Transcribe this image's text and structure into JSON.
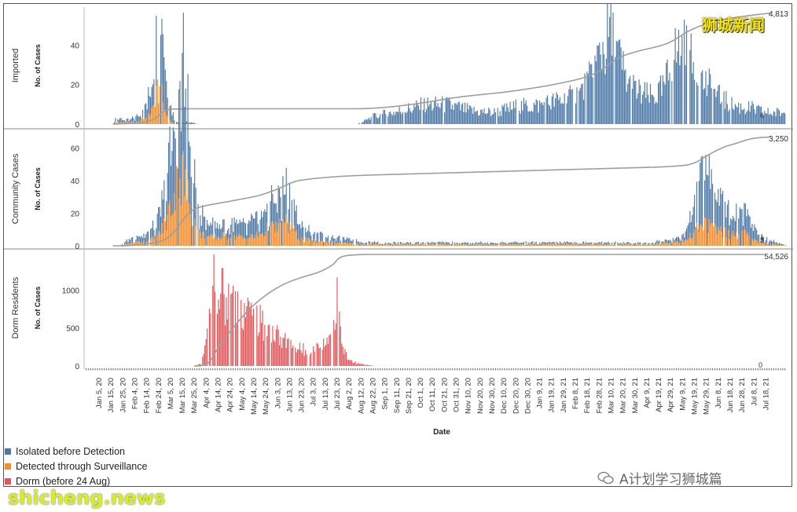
{
  "chart_data": {
    "type": "bar",
    "x_axis": {
      "label": "Date",
      "tick_labels": [
        "Jan 5, 20",
        "Jan 15, 20",
        "Jan 25, 20",
        "Feb 4, 20",
        "Feb 14, 20",
        "Feb 24, 20",
        "Mar 5, 20",
        "Mar 15, 20",
        "Mar 25, 20",
        "Apr 4, 20",
        "Apr 14, 20",
        "Apr 24, 20",
        "May 4, 20",
        "May 14, 20",
        "May 24, 20",
        "Jun 3, 20",
        "Jun 13, 20",
        "Jun 23, 20",
        "Jul 3, 20",
        "Jul 13, 20",
        "Jul 23, 20",
        "Aug 2, 20",
        "Aug 12, 20",
        "Aug 22, 20",
        "Sep 1, 20",
        "Sep 11, 20",
        "Sep 21, 20",
        "Oct 1, 20",
        "Oct 11, 20",
        "Oct 21, 20",
        "Oct 31, 20",
        "Nov 10, 20",
        "Nov 20, 20",
        "Nov 30, 20",
        "Dec 10, 20",
        "Dec 20, 20",
        "Dec 30, 20",
        "Jan 9, 21",
        "Jan 19, 21",
        "Jan 29, 21",
        "Feb 8, 21",
        "Feb 18, 21",
        "Feb 28, 21",
        "Mar 10, 21",
        "Mar 20, 21",
        "Mar 30, 21",
        "Apr 9, 21",
        "Apr 19, 21",
        "Apr 29, 21",
        "May 9, 21",
        "May 19, 21",
        "May 29, 21",
        "Jun 8, 21",
        "Jun 18, 21",
        "Jun 28, 21",
        "Jul 8, 21",
        "Jul 18, 21"
      ]
    },
    "panels": [
      {
        "name": "Imported",
        "ylabel": "No. of Cases",
        "ylim": [
          0,
          56
        ],
        "yticks": [
          0,
          20,
          40
        ],
        "cumulative_end_label": "4,813",
        "last_value_labels": [
          "6"
        ],
        "series": [
          {
            "name": "Isolated before Detection",
            "anchors": [
              [
                3,
                0
              ],
              [
                24,
                0
              ],
              [
                26,
                2
              ],
              [
                38,
                1
              ],
              [
                45,
                3
              ],
              [
                52,
                6
              ],
              [
                58,
                14
              ],
              [
                62,
                28
              ],
              [
                65,
                38
              ],
              [
                67,
                48
              ],
              [
                69,
                34
              ],
              [
                71,
                18
              ],
              [
                75,
                8
              ],
              [
                78,
                3
              ],
              [
                80,
                1
              ],
              [
                90,
                1
              ],
              [
                100,
                0
              ],
              [
                180,
                0
              ],
              [
                240,
                0
              ],
              [
                255,
                4
              ],
              [
                270,
                6
              ],
              [
                285,
                8
              ],
              [
                300,
                10
              ],
              [
                320,
                10
              ],
              [
                340,
                7
              ],
              [
                360,
                6
              ],
              [
                380,
                9
              ],
              [
                400,
                10
              ],
              [
                415,
                12
              ],
              [
                430,
                14
              ],
              [
                440,
                18
              ],
              [
                445,
                22
              ],
              [
                450,
                30
              ],
              [
                455,
                38
              ],
              [
                460,
                44
              ],
              [
                463,
                50
              ],
              [
                466,
                42
              ],
              [
                470,
                36
              ],
              [
                475,
                28
              ],
              [
                480,
                20
              ],
              [
                490,
                16
              ],
              [
                500,
                14
              ],
              [
                510,
                18
              ],
              [
                515,
                26
              ],
              [
                520,
                36
              ],
              [
                525,
                40
              ],
              [
                530,
                38
              ],
              [
                535,
                32
              ],
              [
                540,
                26
              ],
              [
                550,
                20
              ],
              [
                560,
                14
              ],
              [
                570,
                10
              ],
              [
                580,
                9
              ],
              [
                590,
                8
              ],
              [
                600,
                6
              ],
              [
                620,
                6
              ]
            ]
          },
          {
            "name": "Detected through Surveillance",
            "anchors": [
              [
                3,
                0
              ],
              [
                24,
                0
              ],
              [
                26,
                1
              ],
              [
                45,
                1
              ],
              [
                55,
                4
              ],
              [
                60,
                10
              ],
              [
                64,
                18
              ],
              [
                67,
                14
              ],
              [
                70,
                6
              ],
              [
                74,
                2
              ],
              [
                78,
                0
              ],
              [
                620,
                0
              ]
            ]
          }
        ]
      },
      {
        "name": "Community Cases",
        "ylabel": "No. of Cases",
        "ylim": [
          0,
          66
        ],
        "yticks": [
          0,
          20,
          40,
          60
        ],
        "cumulative_end_label": "3,250",
        "last_value_labels": [
          "3",
          "1"
        ],
        "series": [
          {
            "name": "Isolated before Detection",
            "anchors": [
              [
                3,
                0
              ],
              [
                30,
                0
              ],
              [
                40,
                3
              ],
              [
                55,
                5
              ],
              [
                62,
                8
              ],
              [
                70,
                20
              ],
              [
                76,
                40
              ],
              [
                82,
                55
              ],
              [
                86,
                62
              ],
              [
                90,
                48
              ],
              [
                95,
                28
              ],
              [
                100,
                14
              ],
              [
                110,
                8
              ],
              [
                120,
                8
              ],
              [
                125,
                5
              ],
              [
                130,
                8
              ],
              [
                140,
                8
              ],
              [
                150,
                10
              ],
              [
                160,
                14
              ],
              [
                170,
                18
              ],
              [
                178,
                22
              ],
              [
                185,
                14
              ],
              [
                190,
                8
              ],
              [
                200,
                5
              ],
              [
                210,
                4
              ],
              [
                220,
                3
              ],
              [
                240,
                2
              ],
              [
                260,
                1
              ],
              [
                300,
                1
              ],
              [
                350,
                1
              ],
              [
                400,
                1
              ],
              [
                440,
                1
              ],
              [
                470,
                1
              ],
              [
                500,
                1
              ],
              [
                520,
                2
              ],
              [
                530,
                5
              ],
              [
                540,
                20
              ],
              [
                545,
                35
              ],
              [
                550,
                30
              ],
              [
                555,
                28
              ],
              [
                560,
                25
              ],
              [
                565,
                22
              ],
              [
                570,
                12
              ],
              [
                575,
                15
              ],
              [
                580,
                18
              ],
              [
                585,
                14
              ],
              [
                590,
                10
              ],
              [
                595,
                4
              ],
              [
                620,
                0
              ]
            ]
          },
          {
            "name": "Detected through Surveillance",
            "anchors": [
              [
                3,
                0
              ],
              [
                30,
                0
              ],
              [
                40,
                2
              ],
              [
                55,
                3
              ],
              [
                62,
                5
              ],
              [
                70,
                14
              ],
              [
                76,
                28
              ],
              [
                82,
                42
              ],
              [
                86,
                45
              ],
              [
                90,
                30
              ],
              [
                95,
                16
              ],
              [
                100,
                8
              ],
              [
                110,
                5
              ],
              [
                120,
                6
              ],
              [
                130,
                6
              ],
              [
                140,
                5
              ],
              [
                150,
                6
              ],
              [
                160,
                10
              ],
              [
                170,
                12
              ],
              [
                178,
                14
              ],
              [
                185,
                8
              ],
              [
                190,
                4
              ],
              [
                200,
                3
              ],
              [
                220,
                2
              ],
              [
                240,
                1
              ],
              [
                300,
                1
              ],
              [
                500,
                1
              ],
              [
                530,
                3
              ],
              [
                540,
                10
              ],
              [
                545,
                14
              ],
              [
                550,
                12
              ],
              [
                560,
                10
              ],
              [
                570,
                6
              ],
              [
                580,
                8
              ],
              [
                590,
                4
              ],
              [
                595,
                2
              ],
              [
                620,
                0
              ]
            ]
          }
        ]
      },
      {
        "name": "Dorm Residents",
        "ylabel": "No. of Cases",
        "ylim": [
          0,
          1450
        ],
        "yticks": [
          0,
          500,
          1000
        ],
        "cumulative_end_label": "54,526",
        "last_value_labels": [
          "0"
        ],
        "series": [
          {
            "name": "Dorm (before 24 Aug)",
            "anchors": [
              [
                3,
                0
              ],
              [
                96,
                0
              ],
              [
                100,
                20
              ],
              [
                104,
                120
              ],
              [
                108,
                500
              ],
              [
                112,
                900
              ],
              [
                114,
                1380
              ],
              [
                118,
                1000
              ],
              [
                124,
                900
              ],
              [
                130,
                850
              ],
              [
                136,
                820
              ],
              [
                142,
                750
              ],
              [
                148,
                640
              ],
              [
                154,
                560
              ],
              [
                160,
                500
              ],
              [
                166,
                440
              ],
              [
                172,
                380
              ],
              [
                178,
                300
              ],
              [
                184,
                260
              ],
              [
                190,
                220
              ],
              [
                196,
                200
              ],
              [
                202,
                210
              ],
              [
                208,
                280
              ],
              [
                214,
                380
              ],
              [
                218,
                450
              ],
              [
                222,
                880
              ],
              [
                225,
                400
              ],
              [
                228,
                200
              ],
              [
                232,
                80
              ],
              [
                238,
                40
              ],
              [
                244,
                20
              ],
              [
                250,
                10
              ],
              [
                256,
                0
              ],
              [
                620,
                0
              ]
            ]
          }
        ]
      }
    ],
    "legend": [
      {
        "label": "Isolated before Detection",
        "color": "#4e79a7"
      },
      {
        "label": "Detected through Surveillance",
        "color": "#f28e2b"
      },
      {
        "label": "Dorm (before 24 Aug)",
        "color": "#e15759"
      }
    ],
    "cumulative_line_color": "#9e9e9e"
  },
  "branding": {
    "top_right": "狮城新闻",
    "bottom_left": "shicheng.news",
    "watermark": "A计划学习狮城篇"
  }
}
